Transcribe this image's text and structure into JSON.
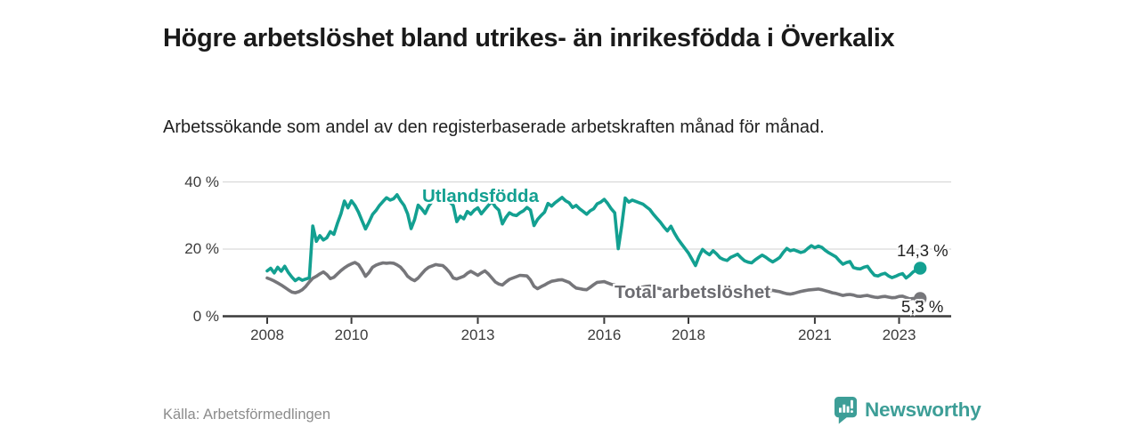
{
  "header": {
    "title": "Högre arbetslöshet bland utrikes- än inrikesfödda i Överkalix",
    "subtitle": "Arbetssökande som andel av den registerbaserade arbetskraften månad för månad."
  },
  "footer": {
    "source": "Källa: Arbetsförmedlingen",
    "brand": "Newsworthy"
  },
  "colors": {
    "accent_teal": "#13a091",
    "line_gray": "#76767a",
    "label_gray": "#6c6c71",
    "grid": "#d9d9d9",
    "axis": "#3a3a3a",
    "text_dark": "#1f1f1f"
  },
  "chart_data": {
    "type": "line",
    "title": "Högre arbetslöshet bland utrikes- än inrikesfödda i Överkalix",
    "subtitle": "Arbetssökande som andel av den registerbaserade arbetskraften månad för månad.",
    "xlabel": "",
    "ylabel": "",
    "ylim": [
      0,
      40
    ],
    "grid": "horizontal",
    "legend_position": "inline-labels",
    "yticks": [
      {
        "value": 0,
        "label": "0 %"
      },
      {
        "value": 20,
        "label": "20 %"
      },
      {
        "value": 40,
        "label": "40 %"
      }
    ],
    "xticks": [
      {
        "value": 2008,
        "label": "2008"
      },
      {
        "value": 2010,
        "label": "2010"
      },
      {
        "value": 2013,
        "label": "2013"
      },
      {
        "value": 2016,
        "label": "2016"
      },
      {
        "value": 2018,
        "label": "2018"
      },
      {
        "value": 2021,
        "label": "2021"
      },
      {
        "value": 2023,
        "label": "2023"
      }
    ],
    "x_unit": "year-month",
    "series": [
      {
        "name": "Utlandsfödda",
        "color": "#13a091",
        "end_label": "14,3 %",
        "end_value": 14.3,
        "start_year": 2008,
        "values": [
          13.5,
          14.3,
          12.9,
          14.6,
          13.4,
          14.9,
          13.1,
          11.7,
          10.6,
          11.3,
          10.7,
          11.1,
          11.4,
          26.9,
          22.3,
          24.0,
          22.7,
          23.4,
          25.2,
          24.4,
          27.6,
          30.5,
          34.3,
          32.3,
          34.4,
          33.0,
          31.0,
          28.5,
          26.0,
          28.0,
          30.3,
          31.5,
          33.0,
          34.2,
          35.3,
          34.6,
          35.0,
          36.2,
          34.4,
          33.0,
          30.5,
          26.1,
          28.8,
          33.1,
          32.0,
          30.6,
          32.8,
          34.2,
          35.8,
          35.0,
          34.6,
          35.4,
          34.0,
          33.0,
          28.2,
          29.8,
          29.0,
          31.2,
          30.4,
          31.6,
          32.3,
          30.5,
          31.8,
          33.0,
          34.2,
          32.6,
          31.6,
          27.5,
          29.4,
          30.8,
          30.2,
          30.0,
          30.8,
          31.4,
          32.4,
          31.6,
          27.0,
          28.8,
          30.0,
          31.0,
          33.6,
          32.8,
          33.8,
          34.6,
          35.4,
          34.4,
          33.8,
          32.4,
          33.0,
          32.0,
          31.2,
          30.4,
          31.4,
          32.0,
          33.5,
          34.0,
          34.8,
          33.6,
          32.0,
          30.8,
          20.1,
          27.0,
          35.2,
          34.0,
          34.6,
          34.2,
          33.8,
          33.4,
          32.6,
          31.8,
          30.4,
          29.2,
          28.0,
          26.6,
          25.4,
          26.8,
          24.8,
          23.0,
          21.6,
          20.2,
          18.8,
          17.0,
          15.1,
          17.8,
          19.9,
          19.0,
          18.3,
          19.5,
          18.6,
          17.4,
          16.9,
          16.6,
          17.5,
          18.0,
          18.5,
          17.4,
          16.5,
          16.1,
          15.9,
          16.8,
          17.5,
          18.2,
          17.6,
          16.8,
          16.2,
          16.8,
          17.5,
          19.0,
          20.2,
          19.5,
          19.8,
          19.4,
          19.0,
          19.3,
          20.2,
          21.0,
          20.4,
          20.9,
          20.5,
          19.6,
          18.9,
          18.3,
          17.7,
          16.5,
          15.5,
          16.0,
          16.3,
          14.5,
          14.2,
          14.1,
          14.6,
          14.9,
          13.4,
          12.2,
          12.0,
          12.5,
          12.8,
          12.0,
          11.5,
          11.9,
          12.4,
          12.7,
          11.4,
          12.2,
          13.2,
          13.8,
          14.3
        ]
      },
      {
        "name": "Total arbetslöshet",
        "color": "#76767a",
        "end_label": "5,3 %",
        "end_value": 5.3,
        "start_year": 2008,
        "values": [
          11.4,
          11.0,
          10.5,
          9.9,
          9.3,
          8.6,
          7.9,
          7.2,
          7.0,
          7.3,
          7.9,
          8.9,
          10.2,
          11.3,
          11.9,
          12.6,
          13.2,
          12.4,
          11.2,
          11.6,
          12.6,
          13.6,
          14.4,
          15.1,
          15.6,
          16.0,
          15.4,
          13.8,
          11.9,
          13.0,
          14.6,
          15.2,
          15.6,
          15.9,
          15.8,
          15.9,
          15.8,
          15.3,
          14.6,
          13.4,
          11.9,
          11.1,
          10.6,
          11.4,
          12.6,
          13.8,
          14.6,
          15.0,
          15.4,
          15.2,
          15.1,
          14.2,
          13.0,
          11.4,
          11.1,
          11.5,
          11.9,
          12.8,
          13.4,
          12.8,
          12.2,
          12.9,
          13.5,
          12.6,
          11.4,
          10.2,
          9.6,
          9.3,
          10.2,
          11.0,
          11.4,
          11.8,
          12.2,
          12.1,
          12.0,
          10.8,
          8.9,
          8.2,
          8.8,
          9.3,
          9.9,
          10.4,
          10.6,
          10.8,
          10.9,
          10.5,
          10.1,
          9.2,
          8.4,
          8.2,
          8.0,
          7.9,
          8.6,
          9.4,
          10.1,
          10.2,
          10.3,
          9.9,
          9.5,
          9.3,
          8.5,
          7.8,
          7.4,
          7.5,
          7.7,
          8.1,
          8.5,
          8.7,
          8.9,
          9.0,
          8.7,
          8.4,
          8.2,
          7.9,
          7.6,
          7.3,
          7.2,
          7.4,
          7.6,
          7.8,
          8.0,
          7.9,
          7.7,
          7.4,
          7.1,
          6.9,
          6.8,
          7.0,
          7.2,
          7.4,
          7.6,
          7.7,
          7.9,
          7.8,
          7.6,
          7.3,
          7.0,
          6.8,
          6.7,
          6.9,
          7.1,
          7.3,
          7.5,
          7.6,
          7.7,
          7.5,
          7.3,
          7.0,
          6.7,
          6.6,
          6.8,
          7.1,
          7.4,
          7.6,
          7.8,
          7.9,
          8.0,
          8.1,
          7.9,
          7.6,
          7.3,
          7.0,
          6.8,
          6.5,
          6.2,
          6.4,
          6.5,
          6.3,
          6.0,
          5.9,
          6.1,
          6.2,
          5.9,
          5.7,
          5.6,
          5.8,
          5.9,
          5.7,
          5.5,
          5.6,
          5.9,
          6.0,
          5.6,
          5.2,
          5.3,
          5.4,
          5.3
        ]
      }
    ]
  }
}
